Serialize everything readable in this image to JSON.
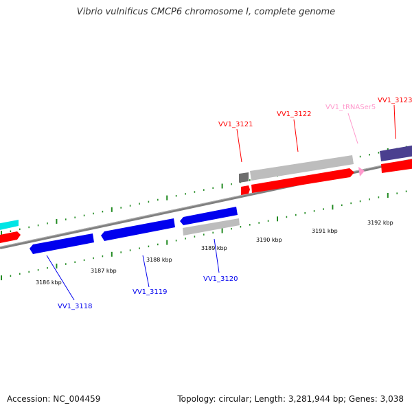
{
  "title": "Vibrio vulnificus CMCP6 chromosome I, complete genome",
  "footer": {
    "accession": "Accession: NC_004459",
    "summary": "Topology: circular; Length: 3,281,944 bp; Genes: 3,038"
  },
  "scale_labels": [
    "3186 kbp",
    "3187 kbp",
    "3188 kbp",
    "3189 kbp",
    "3190 kbp",
    "3191 kbp",
    "3192 kbp"
  ],
  "gene_labels": {
    "vv1_3118": "VV1_3118",
    "vv1_3119": "VV1_3119",
    "vv1_3120": "VV1_3120",
    "vv1_3121": "VV1_3121",
    "vv1_3122": "VV1_3122",
    "vv1_trnaser5": "VV1_tRNASer5",
    "vv1_3123": "VV1_3123"
  },
  "colors": {
    "forward_gene": "#ff0000",
    "reverse_gene": "#0000ee",
    "pseudo_gene": "#bdbdbd",
    "trna": "#ff99cc",
    "cyan_gene": "#00e5e5",
    "purple_gene": "#4a3f8f",
    "tick": "#228b22",
    "backbone": "#808080"
  }
}
